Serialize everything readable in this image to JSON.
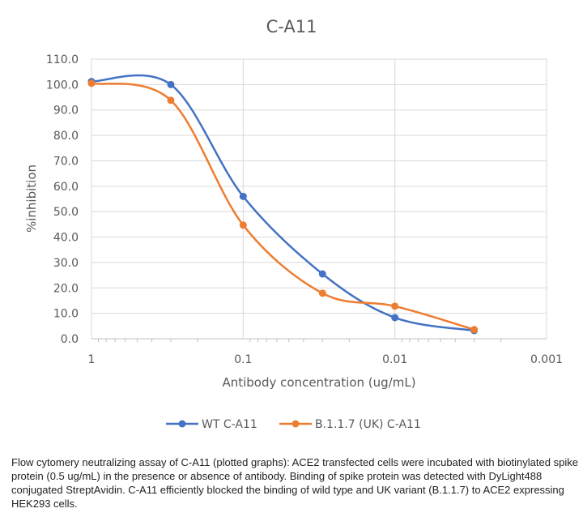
{
  "chart_data": {
    "type": "line",
    "title": "C-A11",
    "xlabel": "Antibody concentration (ug/mL)",
    "ylabel": "%inhibition",
    "x_scale": "log",
    "x_reversed": true,
    "xlim": [
      1,
      0.001
    ],
    "ylim": [
      0,
      110
    ],
    "x_ticks": [
      1,
      0.1,
      0.01,
      0.001
    ],
    "x_tick_labels": [
      "1",
      "0.1",
      "0.01",
      "0.001"
    ],
    "y_ticks": [
      0,
      10,
      20,
      30,
      40,
      50,
      60,
      70,
      80,
      90,
      100,
      110
    ],
    "y_tick_labels": [
      "0.0",
      "10.0",
      "20.0",
      "30.0",
      "40.0",
      "50.0",
      "60.0",
      "70.0",
      "80.0",
      "90.0",
      "100.0",
      "110.0"
    ],
    "grid": true,
    "smooth": true,
    "legend_position": "bottom",
    "series": [
      {
        "name": "WT C-A11",
        "color": "#4472C4",
        "x": [
          1,
          0.3,
          0.1,
          0.03,
          0.01,
          0.003
        ],
        "y": [
          101.2,
          100.0,
          56.0,
          25.5,
          8.3,
          3.2
        ]
      },
      {
        "name": "B.1.1.7 (UK) C-A11",
        "color": "#ED7D31",
        "x": [
          1,
          0.3,
          0.1,
          0.03,
          0.01,
          0.003
        ],
        "y": [
          100.5,
          93.8,
          44.7,
          17.9,
          12.8,
          3.6
        ]
      }
    ]
  },
  "caption": "Flow cytomery neutralizing assay of C-A11 (plotted graphs): ACE2 transfected cells were incubated with biotinylated spike protein (0.5 ug/mL) in the presence or absence of antibody. Binding of spike protein was detected with DyLight488 conjugated StreptAvidin. C-A11 efficiently blocked the binding of wild type and UK variant (B.1.1.7) to ACE2 expressing HEK293 cells."
}
